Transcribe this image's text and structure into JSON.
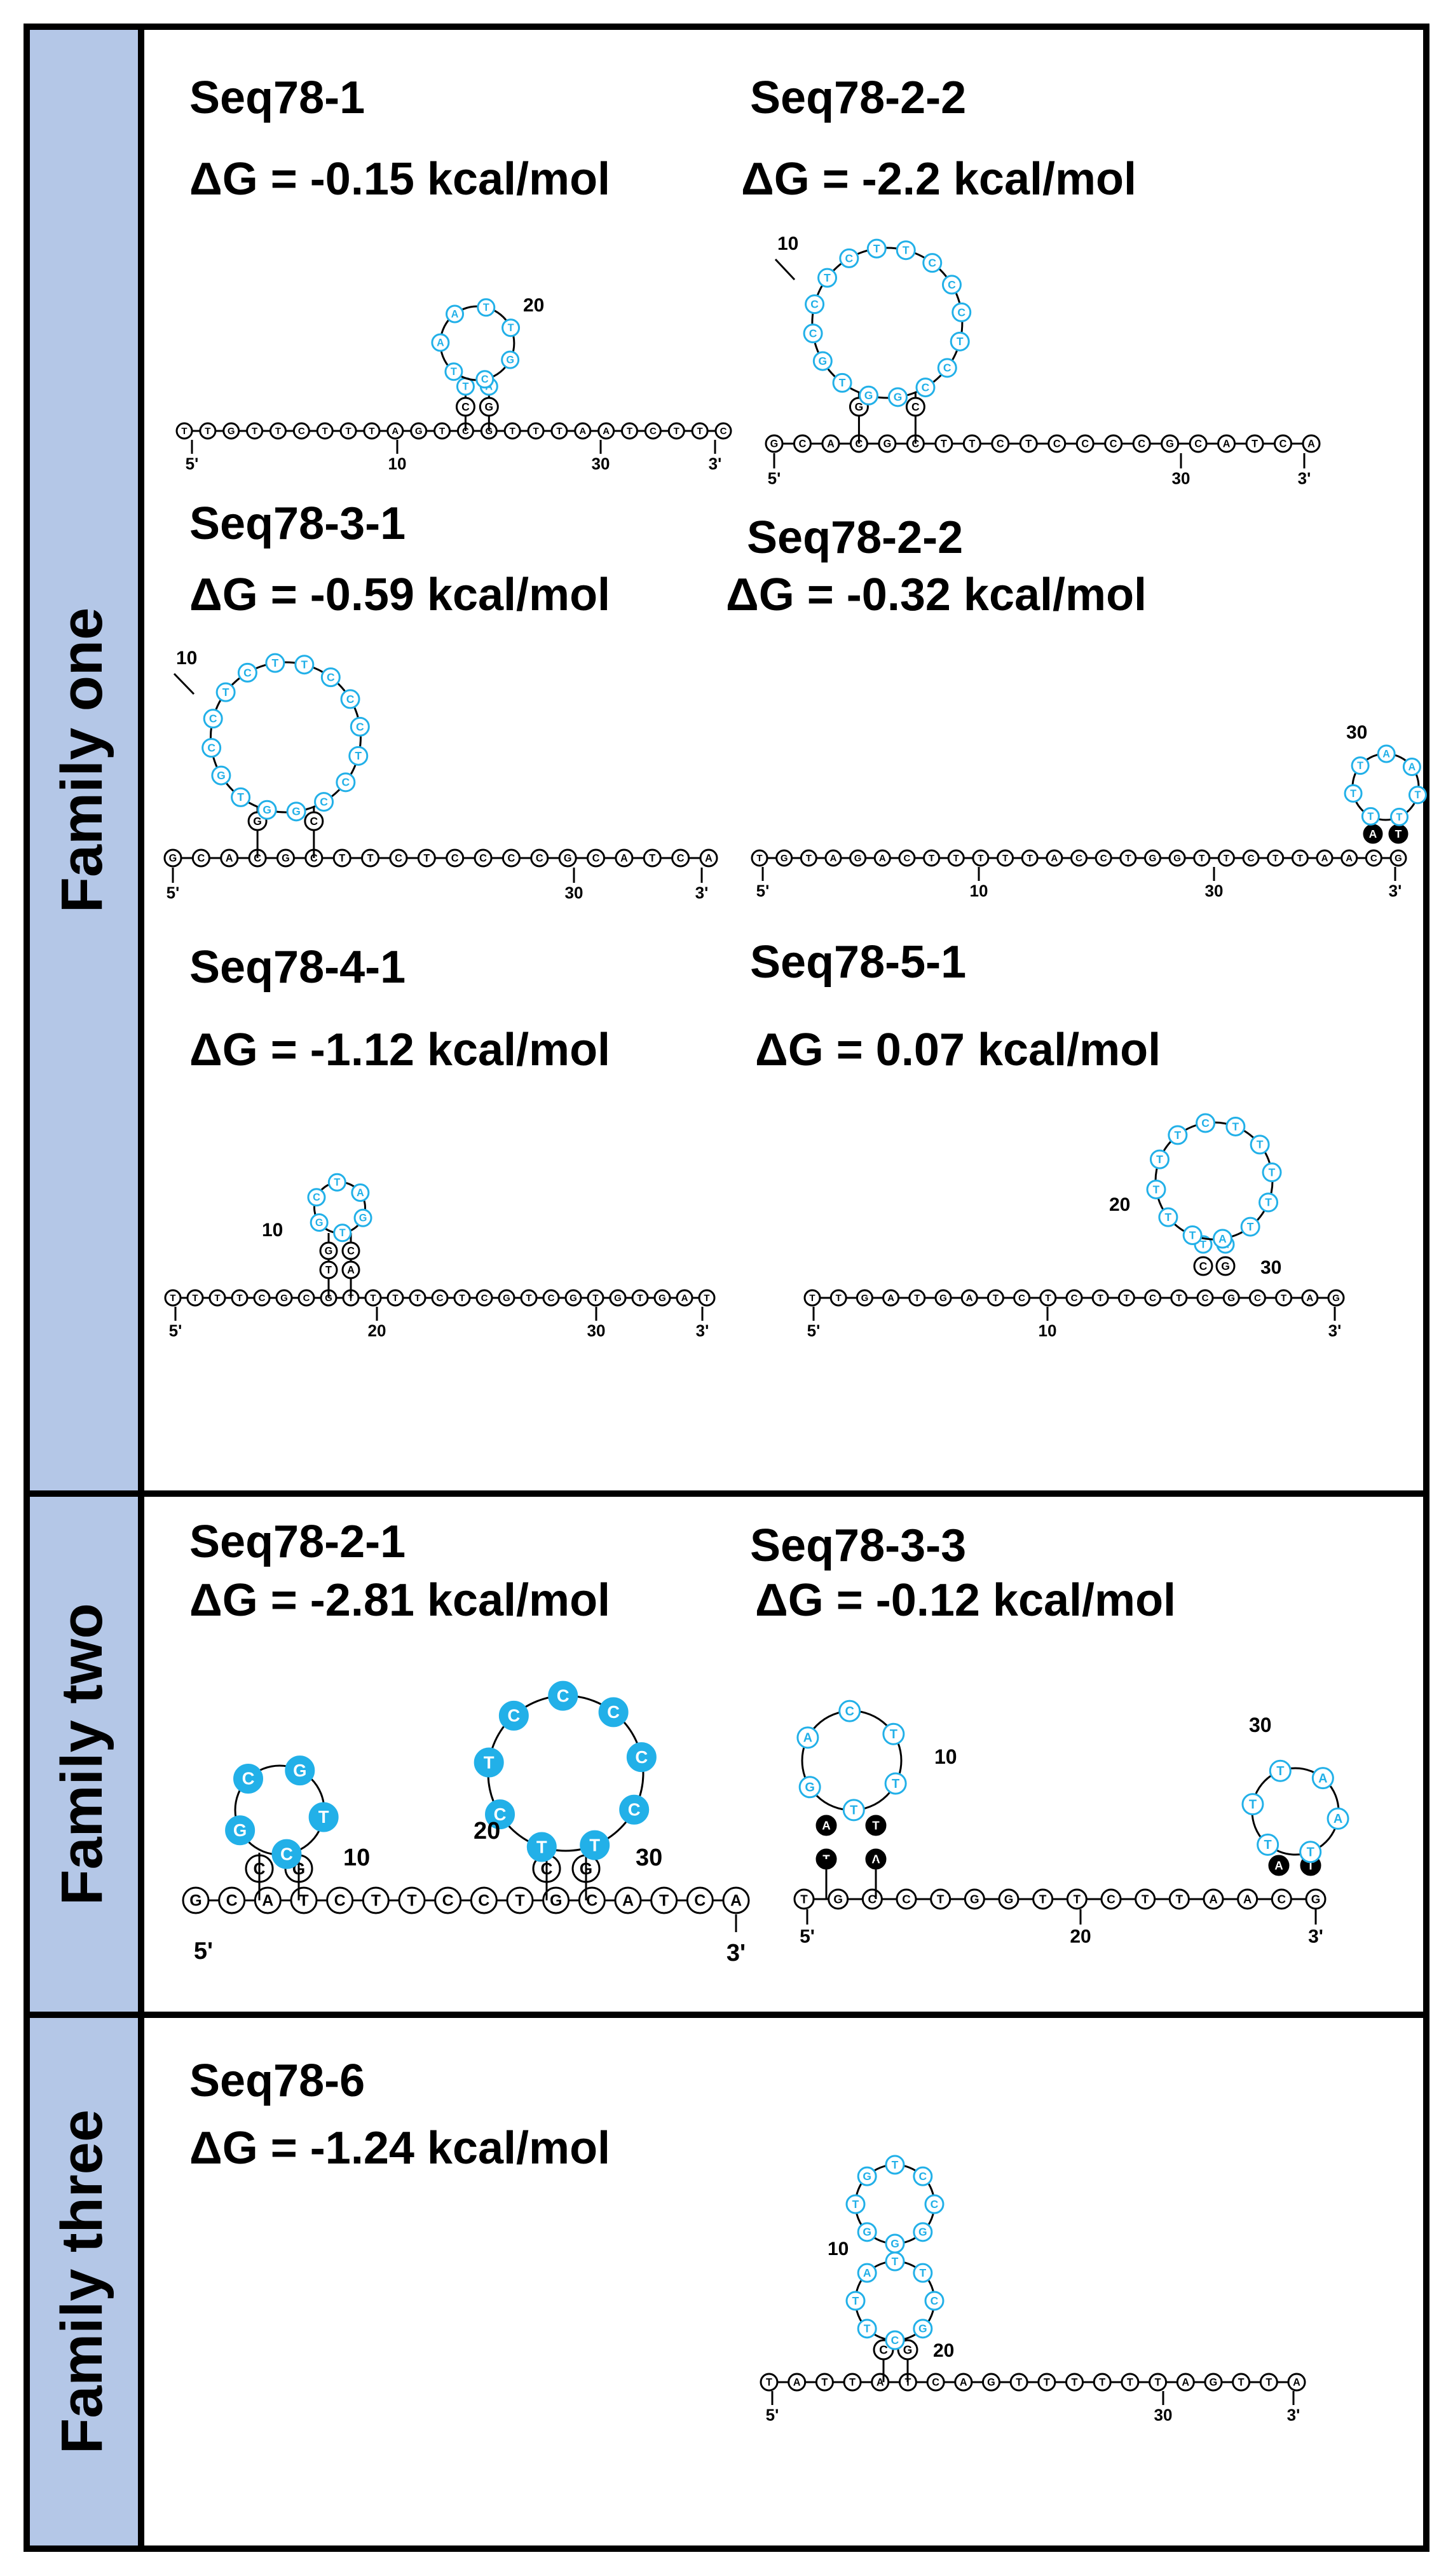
{
  "families": [
    {
      "label": "Family one",
      "panels": [
        {
          "name": "Seq78-1",
          "dg": "ΔG = -0.15 kcal/mol",
          "backbone": [
            "T",
            "T",
            "G",
            "T",
            "T",
            "C",
            "T",
            "T",
            "T",
            "A",
            "G",
            "T",
            "C",
            "G",
            "T",
            "T",
            "T",
            "A",
            "A",
            "T",
            "C",
            "T",
            "T",
            "C"
          ],
          "loop": [
            "T",
            "A",
            "A",
            "T",
            "T",
            "G",
            "C"
          ],
          "stem_top": [
            "T",
            "A"
          ],
          "stem_bot": [
            "C",
            "G"
          ],
          "ticks": [
            "5'",
            "10",
            "30",
            "3'"
          ],
          "loop_number": "20",
          "stem_number": ""
        },
        {
          "name": "Seq78-2-2",
          "dg": "ΔG = -2.2 kcal/mol",
          "backbone": [
            "G",
            "C",
            "A",
            "C",
            "G",
            "C",
            "T",
            "T",
            "C",
            "T",
            "C",
            "C",
            "C",
            "C",
            "G",
            "C",
            "A",
            "T",
            "C",
            "A"
          ],
          "loop": [
            "G",
            "T",
            "G",
            "C",
            "C",
            "T",
            "C",
            "T",
            "T",
            "C",
            "C",
            "C",
            "T",
            "C",
            "C",
            "G"
          ],
          "stem_top": [],
          "stem_bot": [
            "G",
            "C"
          ],
          "ticks": [
            "5'",
            "30",
            "3'"
          ],
          "loop_number": "10",
          "stem_number": ""
        },
        {
          "name": "Seq78-3-1",
          "dg": "ΔG = -0.59 kcal/mol",
          "backbone": [
            "G",
            "C",
            "A",
            "C",
            "G",
            "C",
            "T",
            "T",
            "C",
            "T",
            "C",
            "C",
            "C",
            "C",
            "G",
            "C",
            "A",
            "T",
            "C",
            "A"
          ],
          "loop": [
            "G",
            "T",
            "G",
            "C",
            "C",
            "T",
            "C",
            "T",
            "T",
            "C",
            "C",
            "C",
            "T",
            "C",
            "C",
            "G"
          ],
          "stem_top": [],
          "stem_bot": [
            "G",
            "C"
          ],
          "ticks": [
            "5'",
            "30",
            "3'"
          ],
          "loop_number": "10",
          "stem_number": ""
        },
        {
          "name": "Seq78-2-2",
          "dg": "ΔG = -0.32 kcal/mol",
          "backbone": [
            "T",
            "G",
            "T",
            "A",
            "G",
            "A",
            "C",
            "T",
            "T",
            "T",
            "T",
            "T",
            "A",
            "C",
            "C",
            "T",
            "G",
            "G",
            "T",
            "T",
            "C",
            "T",
            "T",
            "A",
            "A",
            "C",
            "G"
          ],
          "loop": [
            "T",
            "T",
            "T",
            "A",
            "A",
            "T",
            "T"
          ],
          "stem_top": [],
          "stem_bot": [
            "A",
            "T"
          ],
          "ticks": [
            "5'",
            "10",
            "30",
            "3'"
          ],
          "loop_number": "30",
          "stem_number": ""
        },
        {
          "name": "Seq78-4-1",
          "dg": "ΔG = -1.12 kcal/mol",
          "backbone": [
            "T",
            "T",
            "T",
            "T",
            "C",
            "G",
            "C",
            "G",
            "T",
            "T",
            "T",
            "T",
            "C",
            "T",
            "C",
            "G",
            "T",
            "C",
            "G",
            "T",
            "G",
            "T",
            "G",
            "A",
            "T"
          ],
          "loop": [
            "G",
            "C",
            "T",
            "A",
            "G",
            "T"
          ],
          "stem_top": [
            "G",
            "C"
          ],
          "stem_bot": [
            "T",
            "A"
          ],
          "ticks": [
            "5'",
            "20",
            "30",
            "3'"
          ],
          "loop_number": "10",
          "stem_number": ""
        },
        {
          "name": "Seq78-5-1",
          "dg": "ΔG = 0.07 kcal/mol",
          "backbone": [
            "T",
            "T",
            "G",
            "A",
            "T",
            "G",
            "A",
            "T",
            "C",
            "T",
            "C",
            "T",
            "T",
            "C",
            "T",
            "C",
            "G",
            "C",
            "T",
            "A",
            "G"
          ],
          "loop": [
            "T",
            "T",
            "T",
            "T",
            "T",
            "C",
            "T",
            "T",
            "T",
            "T",
            "T",
            "A"
          ],
          "stem_top": [
            "T",
            "A"
          ],
          "stem_bot": [
            "C",
            "G"
          ],
          "ticks": [
            "5'",
            "10",
            "3'"
          ],
          "loop_number": "20",
          "stem_number": "30"
        }
      ]
    },
    {
      "label": "Family two",
      "panels": [
        {
          "name": "Seq78-2-1",
          "dg": "ΔG = -2.81 kcal/mol",
          "backbone": [
            "G",
            "C",
            "A",
            "T",
            "C",
            "T",
            "T",
            "C",
            "C",
            "T",
            "G",
            "C",
            "A",
            "T",
            "C",
            "A"
          ],
          "loop": [
            "G",
            "C",
            "G",
            "T",
            "C"
          ],
          "loop2": [
            "T",
            "C",
            "T",
            "C",
            "C",
            "C",
            "C",
            "C",
            "T"
          ],
          "stem_bot": [
            "C",
            "G"
          ],
          "stem_bot2": [
            "C",
            "G"
          ],
          "ticks": [
            "5'",
            "3'"
          ],
          "loop_number": "10",
          "stem_number": "30",
          "stem_number2": "20"
        },
        {
          "name": "Seq78-3-3",
          "dg": "ΔG = -0.12 kcal/mol",
          "backbone": [
            "T",
            "G",
            "C",
            "C",
            "T",
            "G",
            "G",
            "T",
            "T",
            "C",
            "T",
            "T",
            "A",
            "A",
            "C",
            "G"
          ],
          "loop": [
            "G",
            "A",
            "C",
            "T",
            "T",
            "T"
          ],
          "loop2": [
            "T",
            "T",
            "T",
            "A",
            "A",
            "T"
          ],
          "stem_top": [
            "A",
            "T"
          ],
          "stem_bot": [
            "T",
            "A"
          ],
          "stem_bot2": [
            "A",
            "T"
          ],
          "ticks": [
            "5'",
            "20",
            "3'"
          ],
          "loop_number": "10",
          "loop_number2": "30"
        }
      ]
    },
    {
      "label": "Family three",
      "panels": [
        {
          "name": "Seq78-6",
          "dg": "ΔG = -1.24 kcal/mol",
          "backbone": [
            "T",
            "A",
            "T",
            "T",
            "A",
            "T",
            "C",
            "A",
            "G",
            "T",
            "T",
            "T",
            "T",
            "T",
            "T",
            "A",
            "G",
            "T",
            "T",
            "A"
          ],
          "loop": [
            "G",
            "T",
            "G",
            "T",
            "C",
            "C",
            "G",
            "G"
          ],
          "stem_mid": [
            "G",
            "C",
            "T",
            "T"
          ],
          "stem_mid2": [
            "C",
            "G",
            "A",
            "T"
          ],
          "stem_bot": [
            "C",
            "G"
          ],
          "ticks": [
            "5'",
            "30",
            "3'"
          ],
          "loop_number": "10",
          "stem_number": "20"
        }
      ]
    }
  ],
  "colors": {
    "sidebar": "#b4c7e7",
    "loop": "#22b0e8",
    "border": "#000000"
  }
}
